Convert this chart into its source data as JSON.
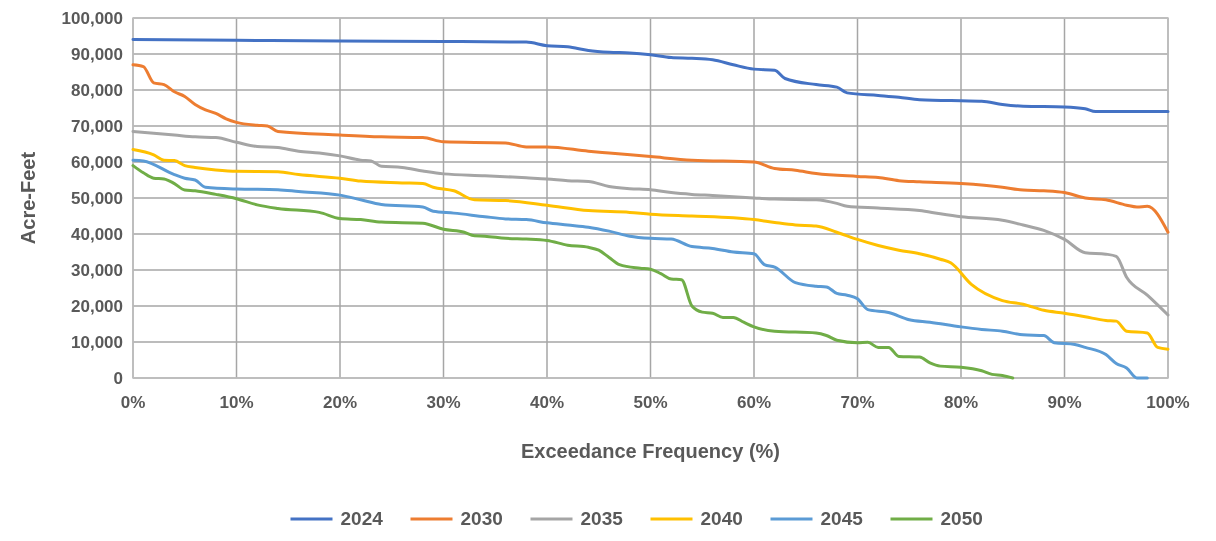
{
  "chart_data": {
    "type": "line",
    "xlabel": "Exceedance Frequency (%)",
    "ylabel": "Acre-Feet",
    "xlim": [
      0,
      100
    ],
    "ylim": [
      0,
      100000
    ],
    "xticks": [
      {
        "value": 0,
        "label": "0%"
      },
      {
        "value": 10,
        "label": "10%"
      },
      {
        "value": 20,
        "label": "20%"
      },
      {
        "value": 30,
        "label": "30%"
      },
      {
        "value": 40,
        "label": "40%"
      },
      {
        "value": 50,
        "label": "50%"
      },
      {
        "value": 60,
        "label": "60%"
      },
      {
        "value": 70,
        "label": "70%"
      },
      {
        "value": 80,
        "label": "80%"
      },
      {
        "value": 90,
        "label": "90%"
      },
      {
        "value": 100,
        "label": "100%"
      }
    ],
    "yticks": [
      {
        "value": 0,
        "label": "0"
      },
      {
        "value": 10000,
        "label": "10,000"
      },
      {
        "value": 20000,
        "label": "20,000"
      },
      {
        "value": 30000,
        "label": "30,000"
      },
      {
        "value": 40000,
        "label": "40,000"
      },
      {
        "value": 50000,
        "label": "50,000"
      },
      {
        "value": 60000,
        "label": "60,000"
      },
      {
        "value": 70000,
        "label": "70,000"
      },
      {
        "value": 80000,
        "label": "80,000"
      },
      {
        "value": 90000,
        "label": "90,000"
      },
      {
        "value": 100000,
        "label": "100,000"
      }
    ],
    "grid": true,
    "legend": "bottom",
    "marker": "none",
    "line_style": "solid",
    "series": [
      {
        "name": "2024",
        "color": "#4472c4",
        "x": [
          0,
          10,
          20,
          30,
          38,
          40,
          42,
          44,
          46,
          48,
          50,
          52,
          54,
          56,
          58,
          60,
          62,
          63,
          66,
          68,
          69,
          72,
          74,
          76,
          80,
          82,
          84,
          86,
          90,
          92,
          93,
          100
        ],
        "values": [
          94000,
          93800,
          93600,
          93500,
          93300,
          92300,
          92000,
          91000,
          90500,
          90300,
          89800,
          89000,
          88800,
          88400,
          87000,
          85800,
          85500,
          83200,
          81500,
          80800,
          79200,
          78500,
          78000,
          77300,
          77000,
          76900,
          76000,
          75500,
          75300,
          74800,
          74000,
          74000
        ]
      },
      {
        "name": "2030",
        "color": "#ed7d31",
        "x": [
          0,
          1,
          2,
          3,
          4,
          5,
          6,
          7,
          8,
          9,
          10,
          12,
          13,
          14,
          20,
          24,
          28,
          30,
          36,
          38,
          40,
          44,
          46,
          50,
          54,
          60,
          62,
          64,
          66,
          70,
          72,
          74,
          76,
          80,
          84,
          86,
          88,
          90,
          92,
          94,
          96,
          97,
          98,
          100
        ],
        "values": [
          87000,
          86500,
          82000,
          81500,
          79500,
          78200,
          76000,
          74500,
          73500,
          72000,
          71000,
          70200,
          70000,
          68500,
          67500,
          67000,
          66800,
          65600,
          65300,
          64200,
          64200,
          63000,
          62500,
          61500,
          60500,
          60000,
          58200,
          57700,
          56800,
          56000,
          55700,
          54800,
          54500,
          54000,
          53000,
          52200,
          52000,
          51500,
          50000,
          49500,
          48000,
          47500,
          47700,
          40500
        ]
      },
      {
        "name": "2035",
        "color": "#a5a5a5",
        "x": [
          0,
          4,
          6,
          8,
          10,
          12,
          14,
          16,
          18,
          20,
          22,
          23,
          24,
          26,
          28,
          30,
          34,
          38,
          40,
          42,
          44,
          46,
          48,
          50,
          52,
          54,
          56,
          60,
          62,
          66,
          68,
          69,
          72,
          76,
          78,
          80,
          84,
          86,
          88,
          90,
          92,
          94,
          95,
          96,
          98,
          100
        ],
        "values": [
          68500,
          67500,
          67000,
          66800,
          65500,
          64300,
          64000,
          63000,
          62500,
          61700,
          60500,
          60300,
          58800,
          58500,
          57500,
          56700,
          56200,
          55600,
          55300,
          54800,
          54600,
          53200,
          52600,
          52300,
          51500,
          51000,
          50700,
          50000,
          49700,
          49500,
          48500,
          47700,
          47200,
          46500,
          45600,
          44800,
          43800,
          42500,
          41000,
          38500,
          34800,
          34400,
          33800,
          28000,
          23000,
          17500
        ]
      },
      {
        "name": "2040",
        "color": "#ffc000",
        "x": [
          0,
          2,
          3,
          4,
          5,
          6,
          8,
          10,
          14,
          16,
          20,
          22,
          26,
          28,
          29,
          31,
          33,
          36,
          40,
          44,
          48,
          50,
          54,
          58,
          60,
          62,
          64,
          66,
          68,
          70,
          72,
          74,
          76,
          78,
          79,
          81,
          84,
          86,
          88,
          90,
          92,
          94,
          95,
          96,
          98,
          99,
          100
        ],
        "values": [
          63500,
          62000,
          60500,
          60400,
          59000,
          58500,
          57800,
          57400,
          57300,
          56500,
          55500,
          54700,
          54200,
          54000,
          53000,
          52000,
          49500,
          49300,
          48000,
          46500,
          46000,
          45500,
          45000,
          44500,
          44000,
          43200,
          42500,
          42200,
          40500,
          38500,
          36800,
          35500,
          34500,
          33000,
          32000,
          26000,
          21500,
          20500,
          18800,
          18000,
          17000,
          16000,
          15800,
          13000,
          12500,
          8500,
          8000
        ]
      },
      {
        "name": "2045",
        "color": "#5b9bd5",
        "x": [
          0,
          1,
          4,
          5,
          6,
          7,
          10,
          14,
          16,
          20,
          22,
          24,
          28,
          29,
          31,
          34,
          36,
          38,
          40,
          42,
          44,
          46,
          48,
          50,
          52,
          54,
          56,
          58,
          60,
          61,
          62,
          64,
          66,
          67,
          68,
          69,
          70,
          71,
          73,
          75,
          77,
          80,
          82,
          84,
          86,
          88,
          89,
          91,
          92,
          94,
          95,
          96,
          97,
          98
        ],
        "values": [
          60500,
          60300,
          56500,
          55500,
          55000,
          53000,
          52500,
          52300,
          51800,
          50800,
          49500,
          48200,
          47500,
          46300,
          45800,
          44800,
          44200,
          44000,
          43100,
          42500,
          41900,
          40800,
          39400,
          38800,
          38600,
          36500,
          36000,
          35000,
          34500,
          31500,
          30800,
          26500,
          25500,
          25300,
          23500,
          23000,
          22000,
          19000,
          18200,
          16200,
          15500,
          14200,
          13500,
          13000,
          12000,
          11800,
          9800,
          9300,
          8500,
          6500,
          4000,
          2800,
          0,
          0
        ]
      },
      {
        "name": "2050",
        "color": "#70ad47",
        "x": [
          0,
          1,
          2,
          3,
          4,
          5,
          6,
          8,
          10,
          12,
          14,
          18,
          20,
          22,
          24,
          28,
          30,
          32,
          33,
          34,
          36,
          38,
          40,
          42,
          44,
          45,
          46,
          47,
          49,
          50,
          51,
          52,
          53,
          54,
          55,
          56,
          57,
          58,
          59,
          60,
          62,
          66,
          67,
          68,
          70,
          71,
          72,
          73,
          74,
          76,
          77,
          78,
          80,
          82,
          83,
          84,
          85
        ],
        "values": [
          59000,
          57000,
          55500,
          55300,
          54000,
          52200,
          52000,
          51000,
          49800,
          48100,
          47100,
          46000,
          44300,
          44000,
          43300,
          43000,
          41300,
          40500,
          39500,
          39400,
          38800,
          38600,
          38200,
          36900,
          36300,
          35500,
          33500,
          31500,
          30500,
          30200,
          29000,
          27500,
          27300,
          20000,
          18300,
          18000,
          16800,
          16800,
          15500,
          14200,
          13000,
          12500,
          11800,
          10500,
          9800,
          9900,
          8500,
          8500,
          6000,
          5800,
          4200,
          3300,
          3000,
          2000,
          1000,
          700,
          0
        ]
      }
    ]
  }
}
